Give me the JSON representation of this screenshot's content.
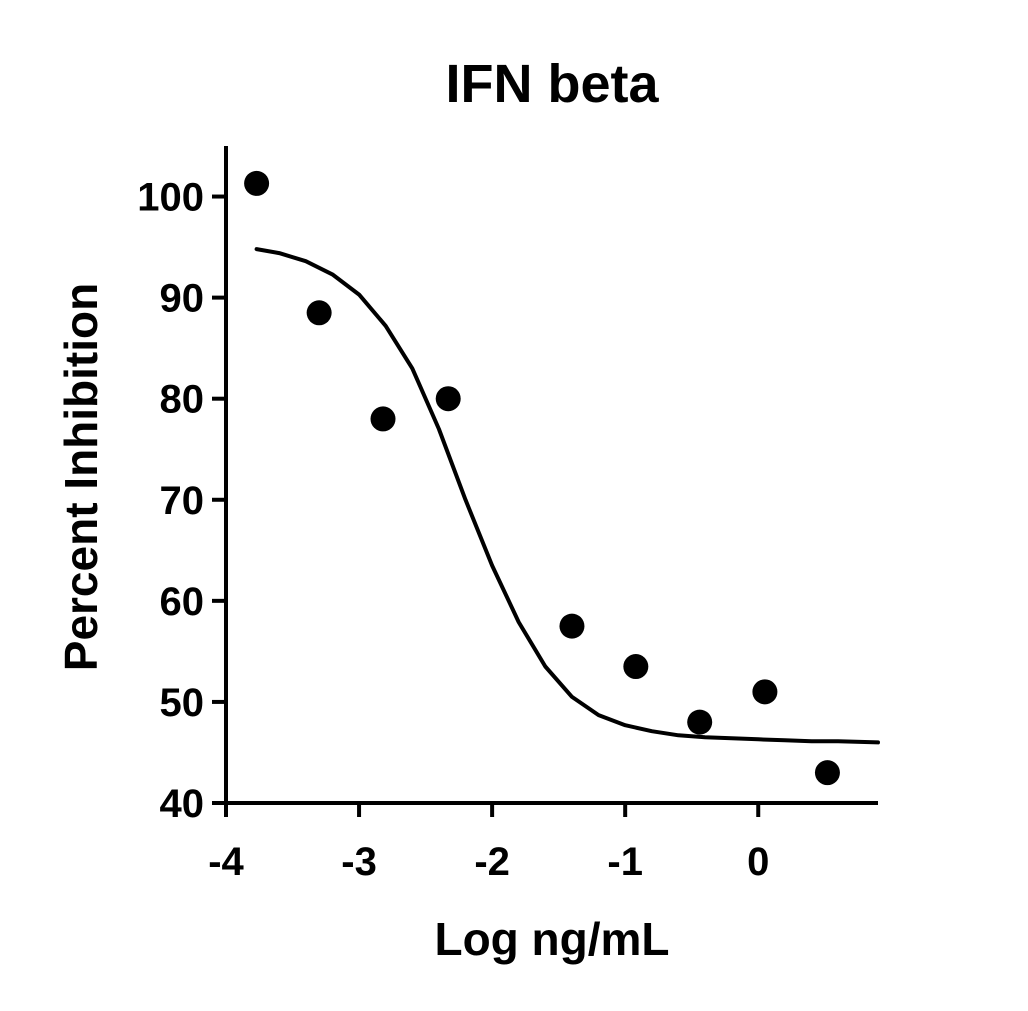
{
  "chart_data": {
    "type": "scatter",
    "title": "IFN beta",
    "xlabel": "Log ng/mL",
    "ylabel": "Percent Inhibition",
    "xlim": [
      -4,
      0.9
    ],
    "ylim": [
      40,
      105
    ],
    "xticks": [
      -4,
      -3,
      -2,
      -1,
      0
    ],
    "xtick_labels": [
      "-4",
      "-3",
      "-2",
      "-1",
      "0"
    ],
    "yticks": [
      40,
      50,
      60,
      70,
      80,
      90,
      100
    ],
    "ytick_labels": [
      "40",
      "50",
      "60",
      "70",
      "80",
      "90",
      "100"
    ],
    "grid": false,
    "legend": "none",
    "series": [
      {
        "type": "scatter",
        "x": [
          -3.77,
          -3.3,
          -2.82,
          -2.33,
          -1.4,
          -0.92,
          -0.44,
          0.05,
          0.52
        ],
        "y": [
          101.3,
          88.5,
          78.0,
          80.0,
          57.5,
          53.5,
          48.0,
          51.0,
          43.0
        ]
      },
      {
        "type": "line",
        "x": [
          -3.77,
          -3.6,
          -3.4,
          -3.2,
          -3.0,
          -2.8,
          -2.6,
          -2.4,
          -2.2,
          -2.0,
          -1.8,
          -1.6,
          -1.4,
          -1.2,
          -1.0,
          -0.8,
          -0.6,
          -0.4,
          -0.2,
          0.0,
          0.2,
          0.4,
          0.6,
          0.9
        ],
        "y": [
          94.8,
          94.4,
          93.6,
          92.3,
          90.3,
          87.2,
          83.0,
          77.0,
          70.0,
          63.5,
          57.9,
          53.5,
          50.5,
          48.7,
          47.7,
          47.1,
          46.7,
          46.5,
          46.4,
          46.3,
          46.2,
          46.1,
          46.1,
          46.0
        ]
      }
    ],
    "colors": {
      "marker": "#000000",
      "line": "#000000",
      "axis": "#000000"
    }
  }
}
